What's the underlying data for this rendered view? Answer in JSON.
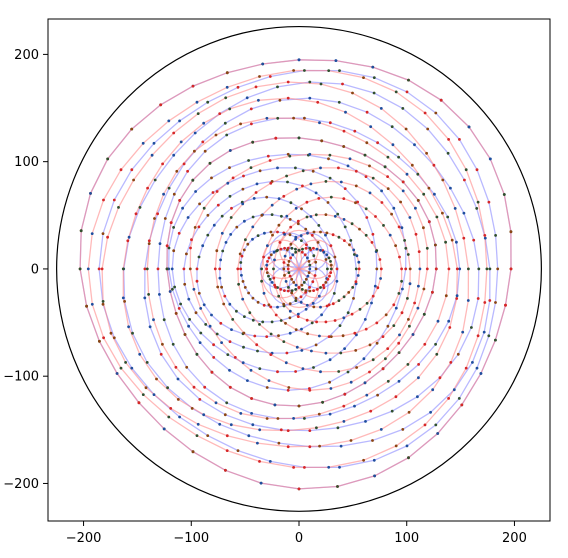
{
  "chart_data": {
    "type": "line",
    "title": "",
    "xlabel": "",
    "ylabel": "",
    "xlim": [
      -233,
      233
    ],
    "ylim": [
      -235,
      233
    ],
    "x_ticks": [
      -200,
      -100,
      0,
      100,
      200
    ],
    "y_ticks": [
      -200,
      -100,
      0,
      100,
      200
    ],
    "x_tick_labels": [
      "−200",
      "−100",
      "0",
      "100",
      "200"
    ],
    "y_tick_labels": [
      "−200",
      "−100",
      "0",
      "100",
      "200"
    ],
    "grid": false,
    "legend": "none",
    "boundary_circle": {
      "center": [
        0,
        0
      ],
      "radius": 225,
      "color": "#000000"
    },
    "family_a": {
      "color": "#8080ff",
      "description_values": {
        "loop_diameters": [
          40,
          70,
          100,
          130,
          160,
          190,
          220,
          250,
          280,
          310,
          340,
          370,
          400
        ],
        "offsets_x": [
          -10,
          -20,
          -25,
          -30,
          -25,
          -20,
          -10,
          0,
          5,
          10,
          10,
          5,
          0
        ]
      }
    },
    "family_b": {
      "color": "#ff8080",
      "description_values": {
        "loop_diameters": [
          40,
          70,
          100,
          130,
          160,
          190,
          220,
          250,
          280,
          310,
          340,
          370,
          400
        ],
        "offsets_x": [
          10,
          20,
          25,
          30,
          25,
          20,
          10,
          0,
          -5,
          -10,
          -10,
          -5,
          0
        ]
      }
    },
    "point_colors": [
      "#1f4e9e",
      "#8b4513",
      "#d62728",
      "#2f4f2f"
    ],
    "points_per_loop": 36
  }
}
